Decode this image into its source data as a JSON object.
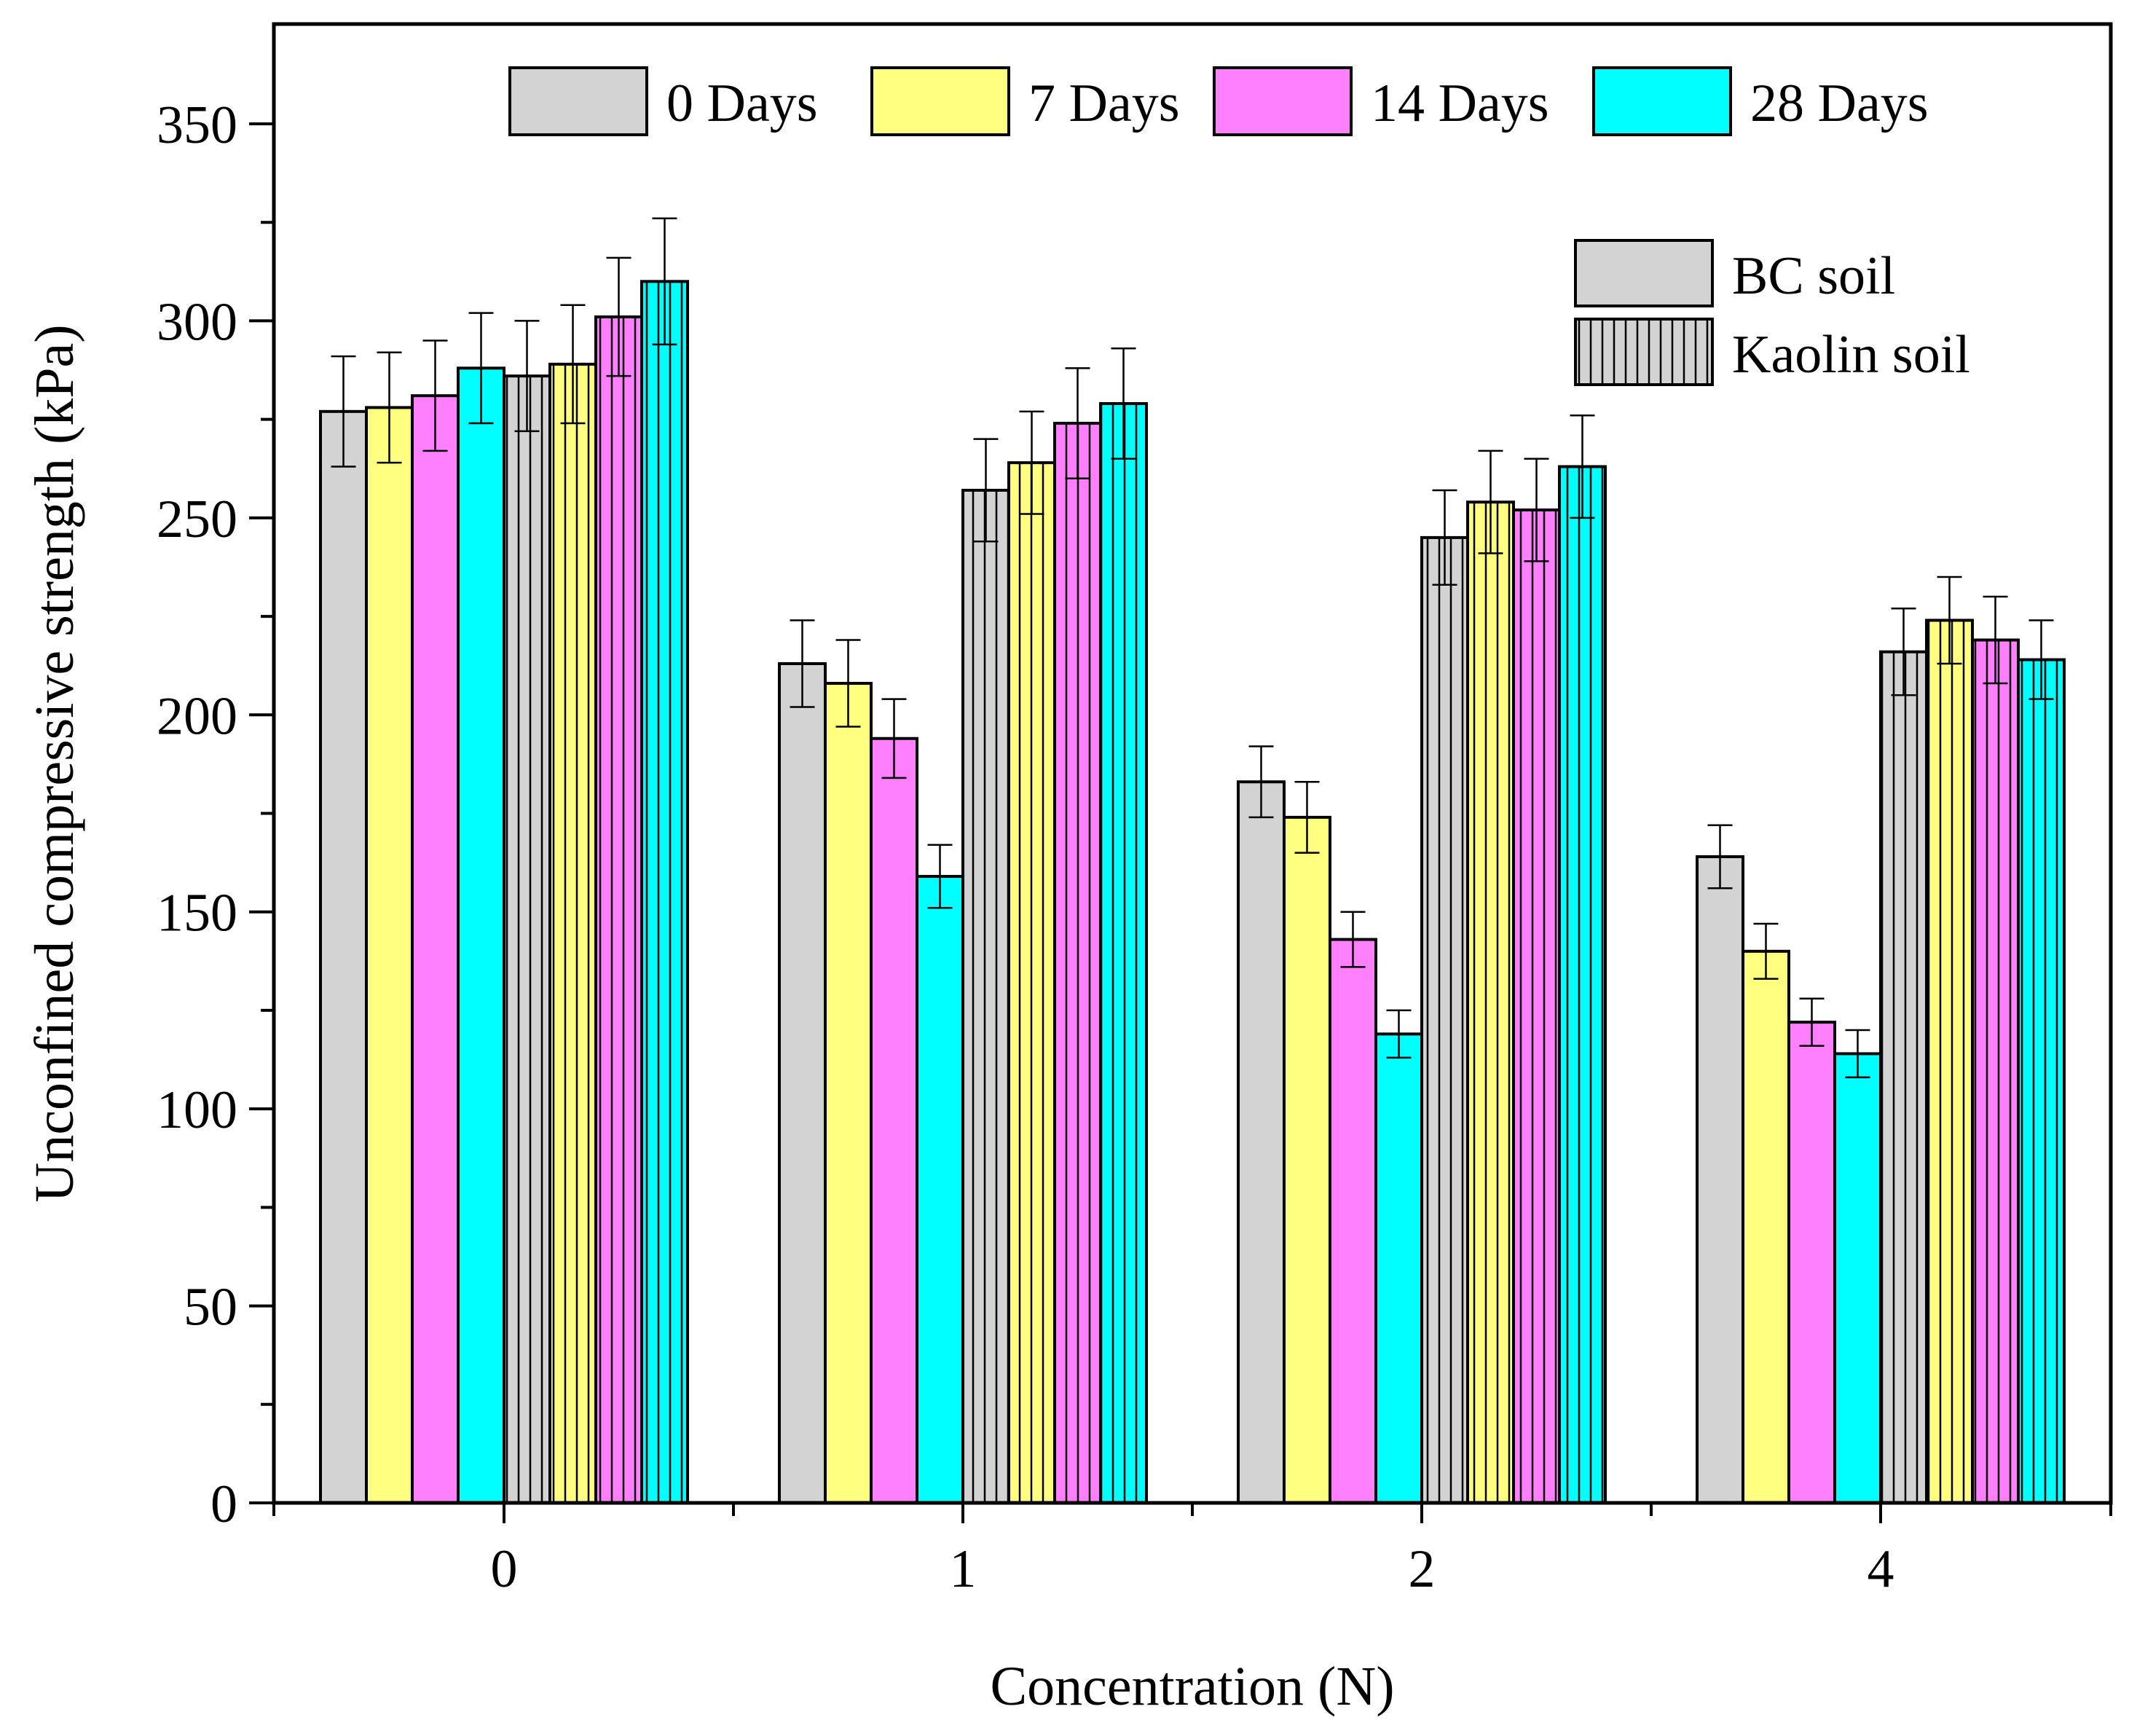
{
  "chart_data": {
    "type": "bar",
    "title": "",
    "xlabel": "Concentration (N)",
    "ylabel": "Unconfined compressive strength (kPa)",
    "categories": [
      "0",
      "1",
      "2",
      "4"
    ],
    "ylim": [
      0,
      375
    ],
    "yticks": [
      0,
      50,
      100,
      150,
      200,
      250,
      300,
      350
    ],
    "grid": false,
    "legend_days": {
      "placement": "top",
      "entries": [
        "0 Days",
        "7 Days",
        "14 Days",
        "28 Days"
      ]
    },
    "legend_soil": {
      "placement": "top-right",
      "entries": [
        "BC soil",
        "Kaolin soil"
      ]
    },
    "series": [
      {
        "name": "BC soil - 0 Days",
        "soil": "BC soil",
        "day": "0 Days",
        "color": "#d3d3d3",
        "hatch": false,
        "values": [
          277,
          213,
          183,
          164
        ],
        "errors": [
          14,
          11,
          9,
          8
        ]
      },
      {
        "name": "BC soil - 7 Days",
        "soil": "BC soil",
        "day": "7 Days",
        "color": "#ffff80",
        "hatch": false,
        "values": [
          278,
          208,
          174,
          140
        ],
        "errors": [
          14,
          11,
          9,
          7
        ]
      },
      {
        "name": "BC soil - 14 Days",
        "soil": "BC soil",
        "day": "14 Days",
        "color": "#ff80ff",
        "hatch": false,
        "values": [
          281,
          194,
          143,
          122
        ],
        "errors": [
          14,
          10,
          7,
          6
        ]
      },
      {
        "name": "BC soil - 28 Days",
        "soil": "BC soil",
        "day": "28 Days",
        "color": "#00ffff",
        "hatch": false,
        "values": [
          288,
          159,
          119,
          114
        ],
        "errors": [
          14,
          8,
          6,
          6
        ]
      },
      {
        "name": "Kaolin soil - 0 Days",
        "soil": "Kaolin soil",
        "day": "0 Days",
        "color": "#d3d3d3",
        "hatch": true,
        "values": [
          286,
          257,
          245,
          216
        ],
        "errors": [
          14,
          13,
          12,
          11
        ]
      },
      {
        "name": "Kaolin soil - 7 Days",
        "soil": "Kaolin soil",
        "day": "7 Days",
        "color": "#ffff80",
        "hatch": true,
        "values": [
          289,
          264,
          254,
          224
        ],
        "errors": [
          15,
          13,
          13,
          11
        ]
      },
      {
        "name": "Kaolin soil - 14 Days",
        "soil": "Kaolin soil",
        "day": "14 Days",
        "color": "#ff80ff",
        "hatch": true,
        "values": [
          301,
          274,
          252,
          219
        ],
        "errors": [
          15,
          14,
          13,
          11
        ]
      },
      {
        "name": "Kaolin soil - 28 Days",
        "soil": "Kaolin soil",
        "day": "28 Days",
        "color": "#00ffff",
        "hatch": true,
        "values": [
          310,
          279,
          263,
          214
        ],
        "errors": [
          16,
          14,
          13,
          10
        ]
      }
    ]
  }
}
